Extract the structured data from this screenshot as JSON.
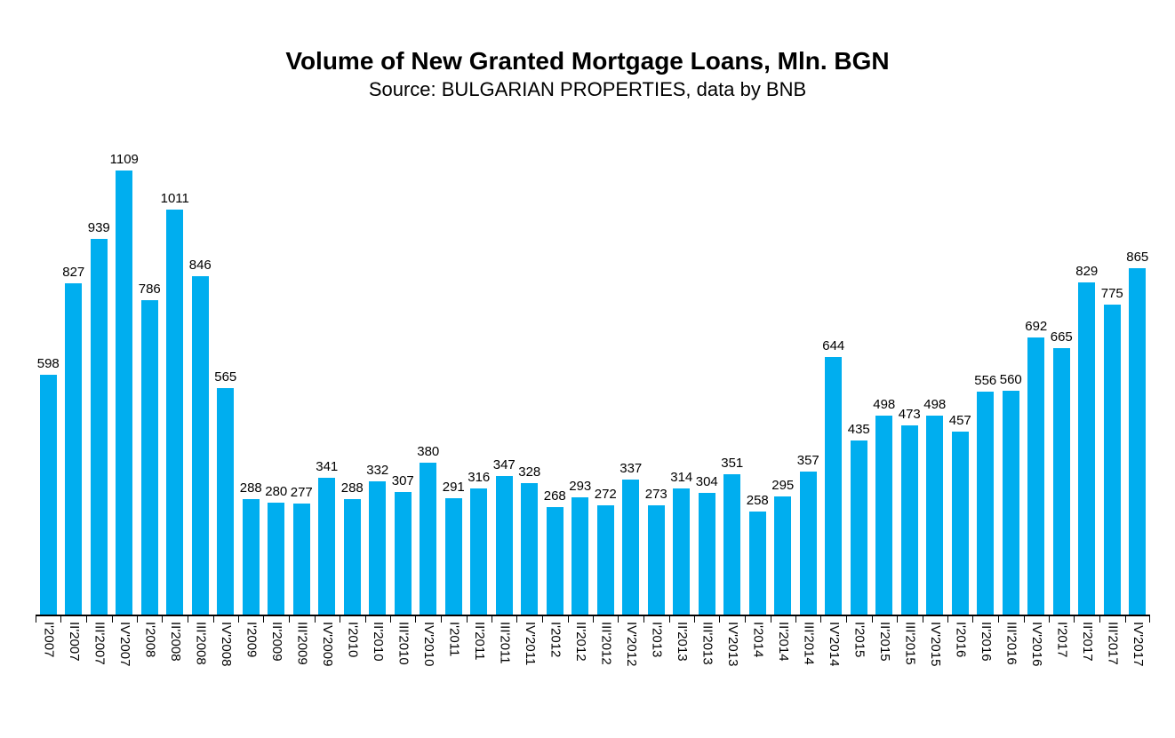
{
  "page": {
    "background": "#ffffff"
  },
  "chart_data": {
    "type": "bar",
    "title": "Volume of New Granted Mortgage Loans, Mln. BGN",
    "subtitle": "Source: BULGARIAN PROPERTIES, data by BNB",
    "categories": [
      "I'2007",
      "II'2007",
      "III'2007",
      "IV'2007",
      "I'2008",
      "II'2008",
      "III'2008",
      "IV'2008",
      "I'2009",
      "II'2009",
      "III'2009",
      "IV'2009",
      "I'2010",
      "II'2010",
      "III'2010",
      "IV'2010",
      "I'2011",
      "II'2011",
      "III'2011",
      "IV'2011",
      "I'2012",
      "II'2012",
      "III'2012",
      "IV'2012",
      "I'2013",
      "II'2013",
      "III'2013",
      "IV'2013",
      "I'2014",
      "II'2014",
      "III'2014",
      "IV'2014",
      "I'2015",
      "II'2015",
      "III'2015",
      "IV'2015",
      "I'2016",
      "II'2016",
      "III'2016",
      "IV'2016",
      "I'2017",
      "II'2017",
      "III'2017",
      "IV'2017"
    ],
    "values": [
      598,
      827,
      939,
      1109,
      786,
      1011,
      846,
      565,
      288,
      280,
      277,
      341,
      288,
      332,
      307,
      380,
      291,
      316,
      347,
      328,
      268,
      293,
      272,
      337,
      273,
      314,
      304,
      351,
      258,
      295,
      357,
      644,
      435,
      498,
      473,
      498,
      457,
      556,
      560,
      692,
      665,
      829,
      775,
      865
    ],
    "xlabel": "",
    "ylabel": "",
    "ylim": [
      0,
      1109
    ],
    "grid": false,
    "legend": false,
    "value_labels_shown": true,
    "bar_color": "#00AEEF",
    "axis_color": "#000000",
    "text_color": "#000000"
  }
}
